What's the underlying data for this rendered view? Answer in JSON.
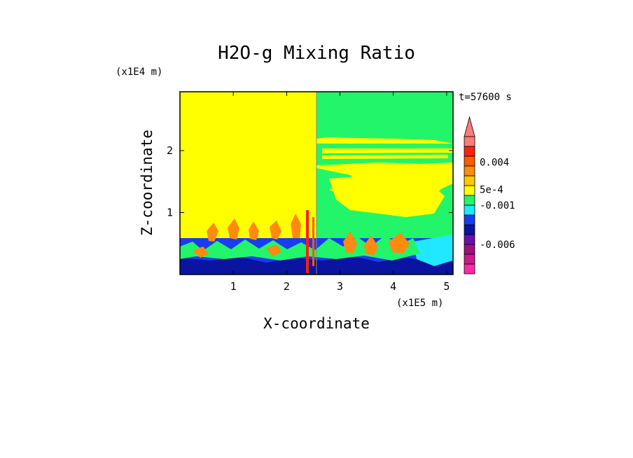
{
  "chart_data": {
    "type": "heatmap",
    "title": "H2O-g Mixing Ratio",
    "xlabel": "X-coordinate",
    "ylabel": "Z-coordinate",
    "x_unit": "(x1E5 m)",
    "y_unit": "(x1E4 m)",
    "time_label": "t=57600 s",
    "xlim": [
      0,
      5.12
    ],
    "ylim": [
      0,
      2.95
    ],
    "x_ticks": [
      {
        "value": 1,
        "label": "1"
      },
      {
        "value": 2,
        "label": "2"
      },
      {
        "value": 3,
        "label": "3"
      },
      {
        "value": 4,
        "label": "4"
      },
      {
        "value": 5,
        "label": "5"
      }
    ],
    "y_ticks": [
      {
        "value": 1,
        "label": "1"
      },
      {
        "value": 2,
        "label": "2"
      }
    ],
    "colorbar": {
      "colors": [
        "#ff2ca8",
        "#d0198c",
        "#a0107a",
        "#6a10a8",
        "#0a14a0",
        "#1a3cf0",
        "#20e8ff",
        "#22f56a",
        "#ffff00",
        "#ffc800",
        "#ff8a10",
        "#ff5a00",
        "#ff2010",
        "#ff7a7a"
      ],
      "labels": [
        {
          "text": "-0.006",
          "level": 3
        },
        {
          "text": "-0.001",
          "level": 7
        },
        {
          "text": "5e-4",
          "level": 8.6
        },
        {
          "text": "0.004",
          "level": 11.4
        }
      ]
    },
    "field_description_regions": {
      "background": "#ffff00",
      "upper_right_band": "#22f56a",
      "low_layer": "#1a3cf0",
      "deep_layer": "#0a14a0",
      "convective_plumes": "#ff8a10",
      "cyan_patch": "#20e8ff",
      "red_filaments": "#ff2010"
    }
  }
}
